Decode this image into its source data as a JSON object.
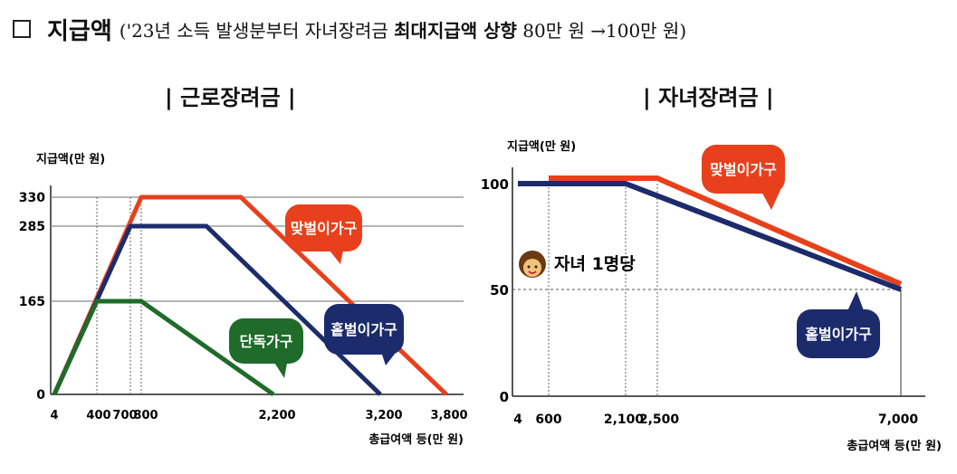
{
  "header": {
    "checkbox": "□",
    "title": "지급액",
    "sub_prefix": "('23년 소득 발생분부터 자녀장려금 ",
    "sub_bold": "최대지급액 상향",
    "sub_suffix": " 80만 원 →100만 원)"
  },
  "chart_data": [
    {
      "type": "line",
      "title": "| 근로장려금 |",
      "ylabel": "지급액(만 원)",
      "xlabel": "총급여액 등(만 원)",
      "x_ticks": [
        "4",
        "400",
        "700",
        "800",
        "2,200",
        "3,200",
        "3,800"
      ],
      "y_ticks": [
        "0",
        "165",
        "285",
        "330"
      ],
      "series": [
        {
          "name": "단독가구",
          "color": "#1e6b2a",
          "points": [
            [
              4,
              0
            ],
            [
              400,
              165
            ],
            [
              800,
              165
            ],
            [
              2200,
              0
            ]
          ]
        },
        {
          "name": "홑벌이가구",
          "color": "#1c2b6b",
          "points": [
            [
              4,
              0
            ],
            [
              700,
              285
            ],
            [
              1400,
              285
            ],
            [
              3200,
              0
            ]
          ]
        },
        {
          "name": "맞벌이가구",
          "color": "#e8401c",
          "points": [
            [
              4,
              0
            ],
            [
              800,
              330
            ],
            [
              1700,
              330
            ],
            [
              3800,
              0
            ]
          ]
        }
      ]
    },
    {
      "type": "line",
      "title": "| 자녀장려금 |",
      "ylabel": "지급액(만 원)",
      "xlabel": "총급여액 등(만 원)",
      "annotation": "자녀 1명당",
      "x_ticks": [
        "4",
        "600",
        "2,100",
        "2,500",
        "7,000"
      ],
      "y_ticks": [
        "0",
        "50",
        "100"
      ],
      "series": [
        {
          "name": "맞벌이가구",
          "color": "#e8401c",
          "points": [
            [
              600,
              100
            ],
            [
              2500,
              100
            ],
            [
              7000,
              50
            ]
          ]
        },
        {
          "name": "홑벌이가구",
          "color": "#1c2b6b",
          "points": [
            [
              4,
              100
            ],
            [
              2100,
              100
            ],
            [
              7000,
              50
            ]
          ]
        }
      ]
    }
  ]
}
